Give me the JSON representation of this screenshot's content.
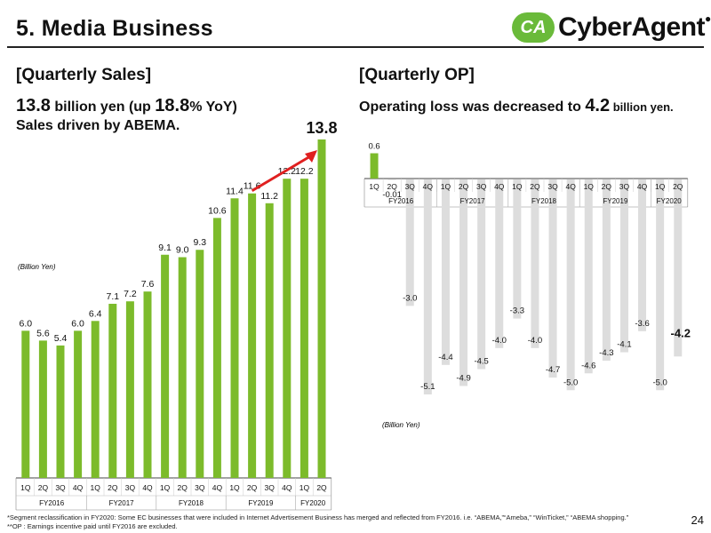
{
  "page": {
    "title": "5. Media Business",
    "logo_mark": "CA",
    "logo_text": "CyberAgent",
    "logo_dot": "●",
    "page_number": "24"
  },
  "left": {
    "heading": "[Quarterly Sales]",
    "lead_value": "13.8",
    "lead_mid": " billion yen (up ",
    "lead_pct": "18.8",
    "lead_end": "% YoY)",
    "lead_line2": "Sales driven by ABEMA.",
    "unit": "(Billion Yen)"
  },
  "right": {
    "heading": "[Quarterly OP]",
    "lead_a": "Operating loss was decreased to ",
    "lead_value": "4.2",
    "lead_b": " billion yen.",
    "unit": "(Billion Yen)"
  },
  "footnotes": [
    "*Segment reclassification in FY2020: Some EC businesses that were included in Internet Advertisement Business has merged and reflected from FY2016. i.e. “ABEMA,”“Ameba,” “WinTicket,” “ABEMA shopping.”",
    "**OP : Earnings incentive paid until FY2016 are excluded."
  ],
  "colors": {
    "bar_sales": "#7cbb2b",
    "bar_op": "#dddddd",
    "bar_op_pos": "#7cbb2b",
    "arrow": "#e02020"
  },
  "chart_data": [
    {
      "type": "bar",
      "title": "[Quarterly Sales]",
      "ylabel": "(Billion Yen)",
      "ylim": [
        0,
        14.2
      ],
      "quarters": [
        "1Q",
        "2Q",
        "3Q",
        "4Q",
        "1Q",
        "2Q",
        "3Q",
        "4Q",
        "1Q",
        "2Q",
        "3Q",
        "4Q",
        "1Q",
        "2Q",
        "3Q",
        "4Q",
        "1Q",
        "2Q"
      ],
      "fiscal_years": [
        {
          "label": "FY2016",
          "span": 4
        },
        {
          "label": "FY2017",
          "span": 4
        },
        {
          "label": "FY2018",
          "span": 4
        },
        {
          "label": "FY2019",
          "span": 4
        },
        {
          "label": "FY2020",
          "span": 2
        }
      ],
      "values": [
        6.0,
        5.6,
        5.4,
        6.0,
        6.4,
        7.1,
        7.2,
        7.6,
        9.1,
        9.0,
        9.3,
        10.6,
        11.4,
        11.6,
        11.2,
        12.2,
        12.2,
        13.8
      ],
      "labels": [
        "6.0",
        "5.6",
        "5.4",
        "6.0",
        "6.4",
        "7.1",
        "7.2",
        "7.6",
        "9.1",
        "9.0",
        "9.3",
        "10.6",
        "11.4",
        "11.6",
        "11.2",
        "12.2",
        "12.2",
        "13.8"
      ],
      "highlight_last": true
    },
    {
      "type": "bar",
      "title": "[Quarterly OP]",
      "ylabel": "(Billion Yen)",
      "ylim": [
        -5.2,
        0.7
      ],
      "quarters": [
        "1Q",
        "2Q",
        "3Q",
        "4Q",
        "1Q",
        "2Q",
        "3Q",
        "4Q",
        "1Q",
        "2Q",
        "3Q",
        "4Q",
        "1Q",
        "2Q",
        "3Q",
        "4Q",
        "1Q",
        "2Q"
      ],
      "fiscal_years": [
        {
          "label": "FY2016",
          "span": 4
        },
        {
          "label": "FY2017",
          "span": 4
        },
        {
          "label": "FY2018",
          "span": 4
        },
        {
          "label": "FY2019",
          "span": 4
        },
        {
          "label": "FY2020",
          "span": 2
        }
      ],
      "values": [
        0.6,
        -0.01,
        -3.0,
        -5.1,
        -4.4,
        -4.9,
        -4.5,
        -4.0,
        -3.3,
        -4.0,
        -4.7,
        -5.0,
        -4.6,
        -4.3,
        -4.1,
        -3.6,
        -5.0,
        -4.2
      ],
      "labels": [
        "0.6",
        "-0.01",
        "-3.0",
        "-5.1",
        "-4.4",
        "-4.9",
        "-4.5",
        "-4.0",
        "-3.3",
        "-4.0",
        "-4.7",
        "-5.0",
        "-4.6",
        "-4.3",
        "-4.1",
        "-3.6",
        "-5.0",
        "-4.2"
      ],
      "highlight_last": true
    }
  ]
}
